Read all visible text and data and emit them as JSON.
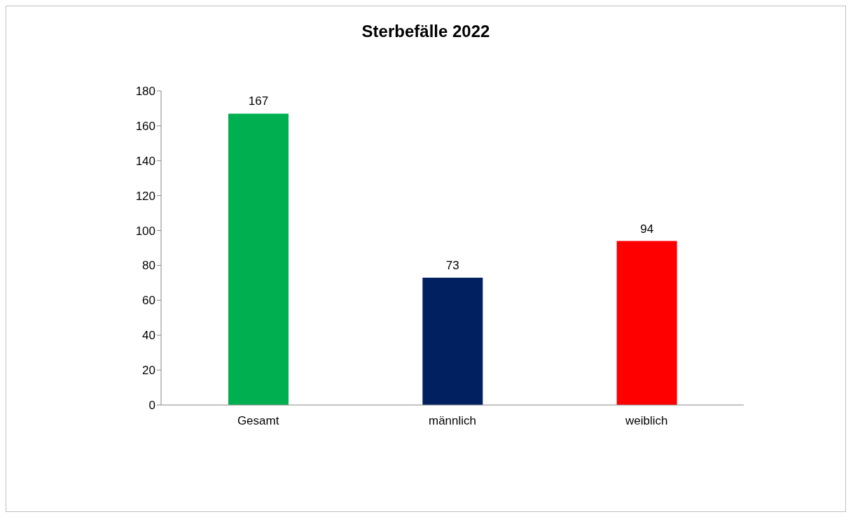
{
  "chart_data": {
    "type": "bar",
    "title": "Sterbefälle 2022",
    "categories": [
      "Gesamt",
      "männlich",
      "weiblich"
    ],
    "values": [
      167,
      73,
      94
    ],
    "colors": [
      "#00b050",
      "#002060",
      "#ff0000"
    ],
    "ylim": [
      0,
      180
    ],
    "yticks": [
      0,
      20,
      40,
      60,
      80,
      100,
      120,
      140,
      160,
      180
    ],
    "grid": false,
    "legend": false,
    "data_labels": true
  }
}
